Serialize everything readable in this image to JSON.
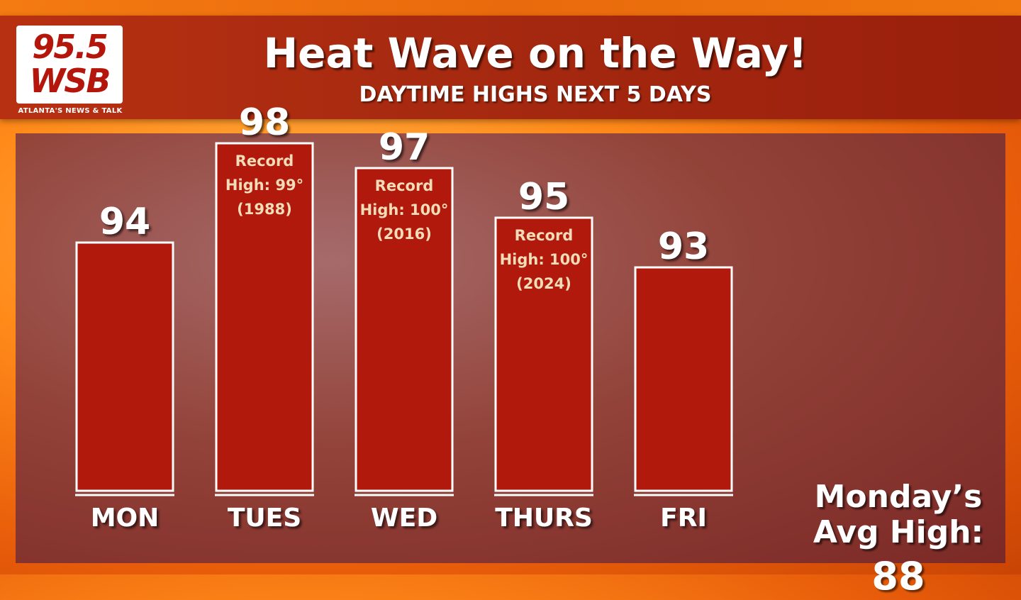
{
  "logo": {
    "line1": "95.5",
    "line2": "WSB",
    "tagline": "ATLANTA'S NEWS & TALK"
  },
  "colors": {
    "bar_fill": "#b0190b",
    "bar_outline": "#ffffff",
    "header_bg": "#a72a10",
    "note_text": "#f3dcb8"
  },
  "chart_data": {
    "type": "bar",
    "title": "Heat Wave on the Way!",
    "subtitle": "DAYTIME HIGHS NEXT 5 DAYS",
    "categories": [
      "MON",
      "TUES",
      "WED",
      "THURS",
      "FRI"
    ],
    "values": [
      94,
      98,
      97,
      95,
      93
    ],
    "value_labels": [
      "94",
      "98",
      "97",
      "95",
      "93"
    ],
    "annotations": [
      null,
      [
        "Record",
        "High: 99°",
        "(1988)"
      ],
      [
        "Record",
        "High: 100°",
        "(2016)"
      ],
      [
        "Record",
        "High: 100°",
        "(2024)"
      ],
      null
    ],
    "ylim": [
      84,
      100
    ],
    "grid": false,
    "legend": "none"
  },
  "side_note": {
    "line1": "Monday’s",
    "line2": "Avg High:",
    "value": "88"
  }
}
